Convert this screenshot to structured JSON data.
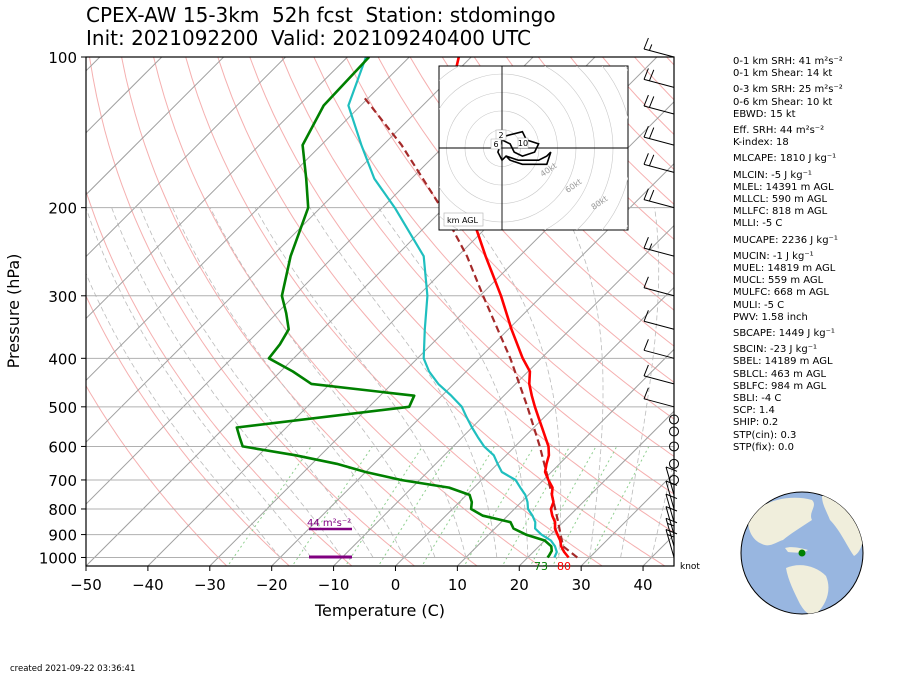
{
  "title": {
    "line1": "CPEX-AW 15-3km  52h fcst  Station: stdomingo",
    "line2": "Init: 2021092200  Valid: 202109240400 UTC"
  },
  "created": "created 2021-09-22 03:36:41",
  "indices": [
    "0-1 km SRH: 41 m²s⁻²",
    "0-1 km Shear: 14 kt",
    "0-3 km SRH: 25 m²s⁻²",
    "0-6 km Shear: 10 kt",
    "EBWD: 15 kt",
    "Eff. SRH: 44 m²s⁻²",
    "K-index: 18",
    "MLCAPE: 1810 J kg⁻¹",
    "MLCIN: -5 J kg⁻¹",
    "MLEL: 14391 m AGL",
    "MLLCL: 590 m AGL",
    "MLLFC: 818 m AGL",
    "MLLI: -5 C",
    "MUCAPE: 2236 J kg⁻¹",
    "MUCIN: -1 J kg⁻¹",
    "MUEL: 14819 m AGL",
    "MUCL: 559 m AGL",
    "MULFC: 668 m AGL",
    "MULI: -5 C",
    "PWV: 1.58 inch",
    "SBCAPE: 1449 J kg⁻¹",
    "SBCIN: -23 J kg⁻¹",
    "SBEL: 14189 m AGL",
    "SBLCL: 463 m AGL",
    "SBLFC: 984 m AGL",
    "SBLI: -4 C",
    "SCP: 1.4",
    "SHIP: 0.2",
    "STP(cin): 0.3",
    "STP(fix): 0.0"
  ],
  "colors": {
    "temperature": "#ff0000",
    "dewpoint": "#008000",
    "wetbulb": "#1fbfbf",
    "parcel": "#a52a2a",
    "srh_bar": "#800080",
    "dry_adiabat": "#f4a6a6",
    "moist_adiabat": "#bbbbbb",
    "mixing_ratio": "#8fcf8f",
    "isotherm": "#a0a0a0",
    "land": "#f0eedc",
    "ocean": "#98b6e0"
  },
  "chart_data": {
    "type": "skew-t log-p sounding",
    "xlabel": "Temperature (C)",
    "ylabel": "Pressure (hPa)",
    "xlim": [
      -50,
      45
    ],
    "ylim": [
      1040,
      100
    ],
    "yscale": "log",
    "x_ticks": [
      -50,
      -40,
      -30,
      -20,
      -10,
      0,
      10,
      20,
      30,
      40
    ],
    "y_ticks": [
      100,
      200,
      300,
      400,
      500,
      600,
      700,
      800,
      900,
      1000
    ],
    "surface_temp_label": "80",
    "surface_dewpoint_label": "73",
    "srh_annotation": "44 m²s⁻²",
    "wind_unit_label": "knot",
    "series": [
      {
        "name": "temperature",
        "p": [
          1000,
          975,
          950,
          925,
          900,
          875,
          850,
          825,
          800,
          775,
          750,
          725,
          700,
          675,
          650,
          625,
          600,
          575,
          550,
          525,
          500,
          475,
          450,
          425,
          400,
          350,
          300,
          250,
          200,
          175,
          150,
          125,
          100
        ],
        "t": [
          26.6,
          25.0,
          23.6,
          22.5,
          21.1,
          19.7,
          18.7,
          17.2,
          15.9,
          15.2,
          13.8,
          12.7,
          10.8,
          9.0,
          7.9,
          6.9,
          5.4,
          3.4,
          1.3,
          -0.9,
          -3.2,
          -5.5,
          -7.8,
          -9.7,
          -13.0,
          -19.5,
          -26.6,
          -35.5,
          -46.0,
          -52.5,
          -58.5,
          -66.0,
          -72.0
        ]
      },
      {
        "name": "dewpoint",
        "p": [
          1000,
          990,
          970,
          950,
          925,
          900,
          875,
          850,
          825,
          800,
          775,
          750,
          725,
          700,
          675,
          650,
          625,
          600,
          575,
          550,
          500,
          475,
          450,
          425,
          400,
          375,
          350,
          325,
          300,
          250,
          200,
          175,
          150,
          125,
          100
        ],
        "t": [
          23.2,
          23.1,
          22.8,
          22.0,
          20.0,
          16.0,
          13.0,
          11.5,
          6.0,
          3.0,
          2.0,
          0.5,
          -4.0,
          -13.0,
          -20.0,
          -26.0,
          -34.0,
          -44.0,
          -46.0,
          -48.0,
          -23.5,
          -24.5,
          -43.0,
          -48.0,
          -54.0,
          -54.5,
          -55.5,
          -58.5,
          -62.0,
          -67.0,
          -72.0,
          -77.0,
          -83.0,
          -86.0,
          -86.5
        ]
      },
      {
        "name": "wetbulb",
        "p": [
          1000,
          975,
          950,
          925,
          900,
          875,
          850,
          825,
          800,
          775,
          750,
          725,
          700,
          675,
          650,
          625,
          600,
          575,
          550,
          525,
          500,
          475,
          450,
          425,
          400,
          350,
          300,
          250,
          200,
          175,
          150,
          125,
          100
        ],
        "t": [
          24.3,
          23.8,
          22.6,
          21.0,
          18.5,
          16.5,
          15.5,
          14.0,
          12.2,
          11.0,
          9.5,
          7.5,
          5.5,
          2.0,
          0.0,
          -2.0,
          -5.0,
          -7.5,
          -10.0,
          -12.5,
          -15.0,
          -18.5,
          -22.5,
          -26.0,
          -29.0,
          -33.5,
          -38.5,
          -45.5,
          -58.0,
          -66.0,
          -73.5,
          -82.0,
          -87.0
        ]
      },
      {
        "name": "parcel",
        "p": [
          1000,
          950,
          900,
          850,
          800,
          700,
          600,
          500,
          400,
          300,
          250,
          200,
          150,
          120
        ],
        "t": [
          28.0,
          23.9,
          21.6,
          19.2,
          16.6,
          10.8,
          4.0,
          -4.4,
          -15.0,
          -29.5,
          -38.5,
          -50.5,
          -67.0,
          -81.0
        ]
      }
    ],
    "wind_barbs": [
      {
        "p": 1000,
        "speed_kt": 14
      },
      {
        "p": 950,
        "speed_kt": 14
      },
      {
        "p": 900,
        "speed_kt": 12
      },
      {
        "p": 850,
        "speed_kt": 10
      },
      {
        "p": 800,
        "speed_kt": 10
      },
      {
        "p": 750,
        "speed_kt": 8
      },
      {
        "p": 700,
        "speed_kt": 0
      },
      {
        "p": 650,
        "speed_kt": 0
      },
      {
        "p": 600,
        "speed_kt": 0
      },
      {
        "p": 560,
        "speed_kt": 0
      },
      {
        "p": 530,
        "speed_kt": 0
      },
      {
        "p": 500,
        "speed_kt": 10
      },
      {
        "p": 450,
        "speed_kt": 12
      },
      {
        "p": 400,
        "speed_kt": 12
      },
      {
        "p": 350,
        "speed_kt": 12
      },
      {
        "p": 300,
        "speed_kt": 12
      },
      {
        "p": 250,
        "speed_kt": 15
      },
      {
        "p": 200,
        "speed_kt": 20
      },
      {
        "p": 170,
        "speed_kt": 20
      },
      {
        "p": 150,
        "speed_kt": 20
      },
      {
        "p": 130,
        "speed_kt": 20
      },
      {
        "p": 115,
        "speed_kt": 20
      },
      {
        "p": 100,
        "speed_kt": 15
      }
    ],
    "hodograph": {
      "unit": "kt",
      "ring_labels": [
        "40kt",
        "60kt",
        "80kt"
      ],
      "height_labels": [
        "2",
        "6",
        "10"
      ],
      "legend": "km AGL",
      "u": [
        -1,
        1,
        5,
        6,
        9,
        8,
        5,
        3,
        2,
        0,
        -1,
        0,
        1,
        4,
        9,
        11,
        12,
        11,
        5,
        2,
        1
      ],
      "v": [
        1,
        3,
        4,
        2,
        1,
        -1,
        -2,
        -1,
        1,
        2,
        -1,
        -3,
        -2,
        -3,
        -3,
        -2,
        -1,
        -4,
        -4,
        -3,
        -2
      ]
    },
    "globe": {
      "lat": 18.5,
      "lon": -69.9
    }
  }
}
